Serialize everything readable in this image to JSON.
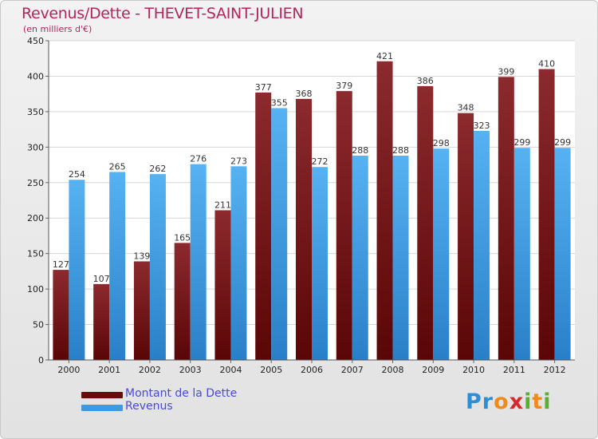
{
  "header": {
    "title": "Revenus/Dette - THEVET-SAINT-JULIEN",
    "subtitle": "(en milliers d'€)"
  },
  "legend": {
    "debt_label": "Montant de la Dette",
    "revenue_label": "Revenus"
  },
  "logo": {
    "text": "Proxiti"
  },
  "colors": {
    "debt": "#8b1a1a",
    "debt_dark": "#5a0a0a",
    "revenue": "#4aa8ec",
    "revenue_dark": "#2a7cc4",
    "title": "#b5245c",
    "legend_text": "#4a4ad8"
  },
  "chart_data": {
    "type": "bar",
    "title": "Revenus/Dette - THEVET-SAINT-JULIEN",
    "ylabel": "(en milliers d'€)",
    "xlabel": "",
    "ylim": [
      0,
      450
    ],
    "yticks": [
      0,
      50,
      100,
      150,
      200,
      250,
      300,
      350,
      400,
      450
    ],
    "grid": true,
    "categories": [
      "2000",
      "2001",
      "2002",
      "2003",
      "2004",
      "2005",
      "2006",
      "2007",
      "2008",
      "2009",
      "2010",
      "2011",
      "2012"
    ],
    "series": [
      {
        "name": "Montant de la Dette",
        "values": [
          127,
          107,
          139,
          165,
          211,
          377,
          368,
          379,
          421,
          386,
          348,
          399,
          410
        ]
      },
      {
        "name": "Revenus",
        "values": [
          254,
          265,
          262,
          276,
          273,
          355,
          272,
          288,
          288,
          298,
          323,
          299,
          299
        ]
      }
    ]
  }
}
